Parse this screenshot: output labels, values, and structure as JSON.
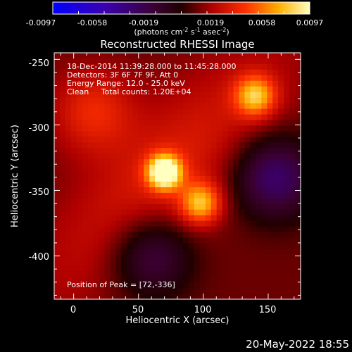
{
  "chart_data": {
    "type": "heatmap",
    "title": "Reconstructed RHESSI Image",
    "xlabel": "Heliocentric X (arcsec)",
    "ylabel": "Heliocentric Y (arcsec)",
    "xlim": [
      -15,
      175
    ],
    "ylim": [
      -433,
      -245
    ],
    "xticks": [
      0,
      50,
      100,
      150
    ],
    "yticks": [
      -250,
      -300,
      -350,
      -400
    ],
    "colorbar": {
      "min": -0.0097,
      "max": 0.0097,
      "ticks": [
        "-0.0097",
        "-0.0058",
        "-0.0019",
        "0.0019",
        "0.0058",
        "0.0097"
      ],
      "unit_label": "(photons cm",
      "unit_exp1": "-2",
      "unit_mid": " s",
      "unit_exp2": "-1",
      "unit_mid2": " asec",
      "unit_exp3": "-2",
      "unit_end": ")"
    },
    "info_lines": [
      "18-Dec-2014 11:39:28.000 to 11:45:28.000",
      "Detectors: 3F 6F 7F 9F, Att 0",
      "Energy Range: 12.0 - 25.0 keV",
      "Clean     Total counts: 1.20E+04"
    ],
    "peak_text": "Position of Peak = [72,-336]",
    "sources": [
      {
        "x": 70,
        "y": -336,
        "amplitude": 0.0097
      },
      {
        "x": 98,
        "y": -360,
        "amplitude": 0.006
      },
      {
        "x": 140,
        "y": -278,
        "amplitude": 0.006
      },
      {
        "x": 15,
        "y": -290,
        "amplitude": 0.003
      },
      {
        "x": 60,
        "y": -400,
        "amplitude": -0.004
      },
      {
        "x": 155,
        "y": -340,
        "amplitude": -0.005
      }
    ]
  },
  "footer_date": "20-May-2022 18:55"
}
